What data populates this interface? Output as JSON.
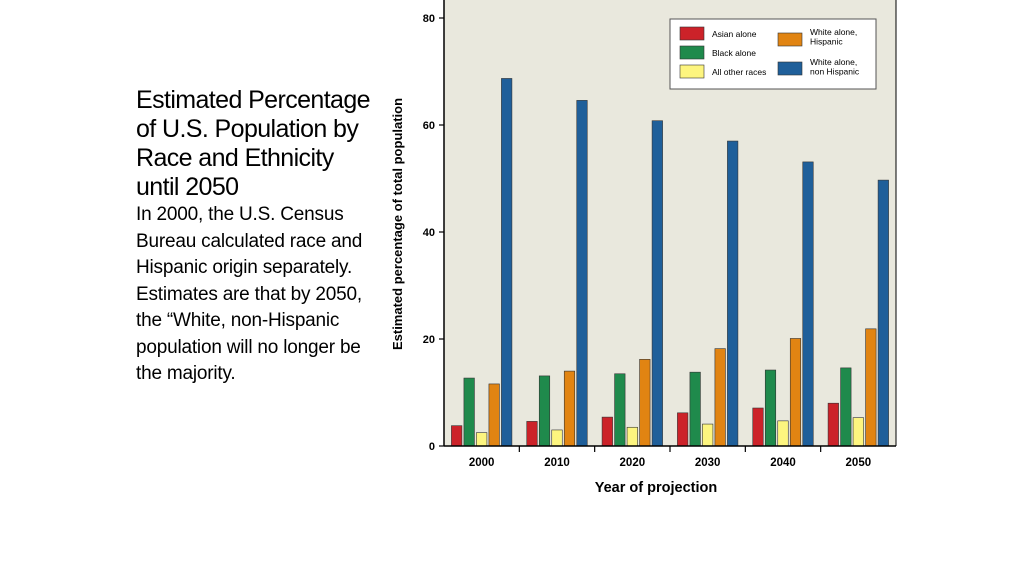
{
  "slide": {
    "title": "Estimated Percentage of U.S. Population by Race and Ethnicity until 2050",
    "description": "In 2000, the U.S. Census Bureau calculated race and Hispanic origin separately. Estimates are that by 2050, the “White, non-Hispanic population will no longer be the majority."
  },
  "chart_data": {
    "type": "bar",
    "title": "",
    "xlabel": "Year of projection",
    "ylabel": "Estimated percentage of total population",
    "ylim": [
      0,
      80
    ],
    "yticks": [
      "0",
      "20",
      "40",
      "60",
      "80"
    ],
    "grid": false,
    "legend_position": "top-right",
    "categories": [
      "2000",
      "2010",
      "2020",
      "2030",
      "2040",
      "2050"
    ],
    "series": [
      {
        "name": "Asian alone",
        "color": "#cc2229",
        "values": [
          3.8,
          4.6,
          5.4,
          6.2,
          7.1,
          8.0
        ]
      },
      {
        "name": "Black alone",
        "color": "#1f8a4c",
        "values": [
          12.7,
          13.1,
          13.5,
          13.8,
          14.2,
          14.6
        ]
      },
      {
        "name": "All other races",
        "color": "#fdf57f",
        "values": [
          2.5,
          3.0,
          3.5,
          4.1,
          4.7,
          5.3
        ]
      },
      {
        "name": "White alone, Hispanic",
        "color": "#e18412",
        "values": [
          11.6,
          14.0,
          16.2,
          18.2,
          20.1,
          21.9
        ]
      },
      {
        "name": "White alone, non Hispanic",
        "color": "#1f5f9a",
        "values": [
          68.7,
          64.6,
          60.8,
          57.0,
          53.1,
          49.7
        ]
      }
    ],
    "legend_entries": [
      {
        "label_lines": [
          "Asian alone"
        ],
        "color": "#cc2229"
      },
      {
        "label_lines": [
          "Black alone"
        ],
        "color": "#1f8a4c"
      },
      {
        "label_lines": [
          "All other races"
        ],
        "color": "#fdf57f"
      },
      {
        "label_lines": [
          "White alone,",
          "Hispanic"
        ],
        "color": "#e18412"
      },
      {
        "label_lines": [
          "White alone,",
          "non Hispanic"
        ],
        "color": "#1f5f9a"
      }
    ]
  }
}
